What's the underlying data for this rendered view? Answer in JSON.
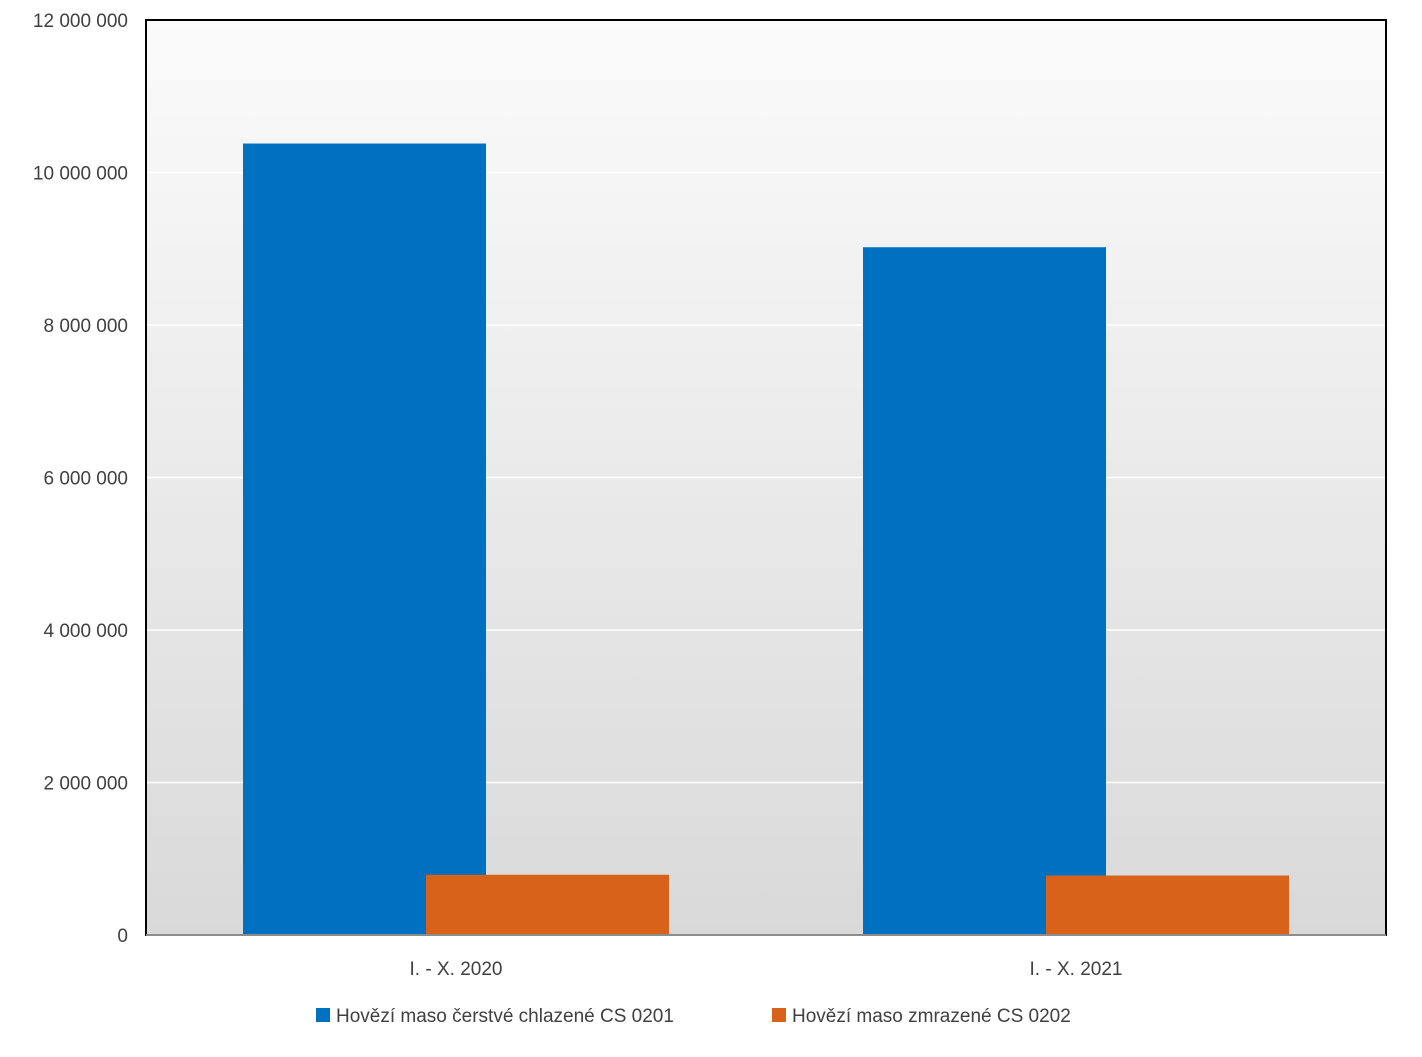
{
  "chart_data": {
    "type": "bar",
    "categories": [
      "I. - X. 2020",
      "I. - X. 2021"
    ],
    "series": [
      {
        "name": "Hovězí maso čerstvé chlazené CS 0201",
        "values": [
          10380000,
          9020000
        ],
        "color": "#0070C0"
      },
      {
        "name": "Hovězí maso zmrazené CS 0202",
        "values": [
          790000,
          780000
        ],
        "color": "#D86219"
      }
    ],
    "ylim": [
      0,
      12000000
    ],
    "yticks": [
      {
        "value": 0,
        "label": "0"
      },
      {
        "value": 2000000,
        "label": "2 000 000"
      },
      {
        "value": 4000000,
        "label": "4 000 000"
      },
      {
        "value": 6000000,
        "label": "6 000 000"
      },
      {
        "value": 8000000,
        "label": "8 000 000"
      },
      {
        "value": 10000000,
        "label": "10 000 000"
      },
      {
        "value": 12000000,
        "label": "12 000 000"
      }
    ],
    "grid": true,
    "legend_position": "bottom",
    "plot_background": "gradient light gray",
    "title": "",
    "xlabel": "",
    "ylabel": ""
  }
}
